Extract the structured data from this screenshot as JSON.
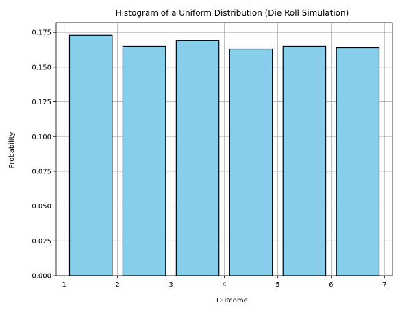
{
  "chart_data": {
    "type": "bar",
    "title": "Histogram of a Uniform Distribution (Die Roll Simulation)",
    "xlabel": "Outcome",
    "ylabel": "Probability",
    "bars": [
      {
        "x_start": 1.1,
        "x_end": 1.9,
        "value": 0.173
      },
      {
        "x_start": 2.1,
        "x_end": 2.9,
        "value": 0.165
      },
      {
        "x_start": 3.1,
        "x_end": 3.9,
        "value": 0.169
      },
      {
        "x_start": 4.1,
        "x_end": 4.9,
        "value": 0.163
      },
      {
        "x_start": 5.1,
        "x_end": 5.9,
        "value": 0.165
      },
      {
        "x_start": 6.1,
        "x_end": 6.9,
        "value": 0.164
      }
    ],
    "xlim": [
      0.85,
      7.15
    ],
    "ylim": [
      0,
      0.182
    ],
    "xticks": [
      "1",
      "2",
      "3",
      "4",
      "5",
      "6",
      "7"
    ],
    "yticks": [
      "0.000",
      "0.025",
      "0.050",
      "0.075",
      "0.100",
      "0.125",
      "0.150",
      "0.175"
    ],
    "grid": true,
    "bar_color": "#87ceeb",
    "edge_color": "#000000"
  }
}
